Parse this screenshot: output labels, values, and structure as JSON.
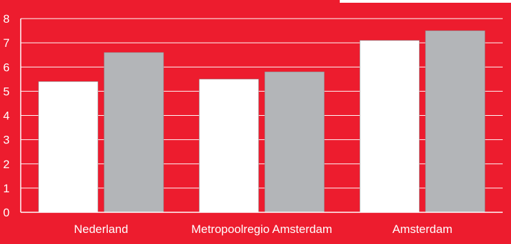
{
  "colors": {
    "background": "#ED1C2E",
    "series_1": "#FFFFFF",
    "series_2": "#B3B5B8",
    "gridline": "#FFFFFF",
    "text": "#FFFFFF"
  },
  "chart_data": {
    "type": "bar",
    "title": "",
    "xlabel": "",
    "ylabel": "",
    "categories": [
      "Nederland",
      "Metropoolregio Amsterdam",
      "Amsterdam"
    ],
    "series": [
      {
        "color": "#FFFFFF",
        "values": [
          5.4,
          5.5,
          7.1
        ]
      },
      {
        "color": "#B3B5B8",
        "values": [
          6.6,
          5.8,
          7.5
        ]
      }
    ],
    "ylim": [
      0,
      8
    ],
    "yticks": [
      0,
      1,
      2,
      3,
      4,
      5,
      6,
      7,
      8
    ],
    "grid": true,
    "legend": "none"
  }
}
